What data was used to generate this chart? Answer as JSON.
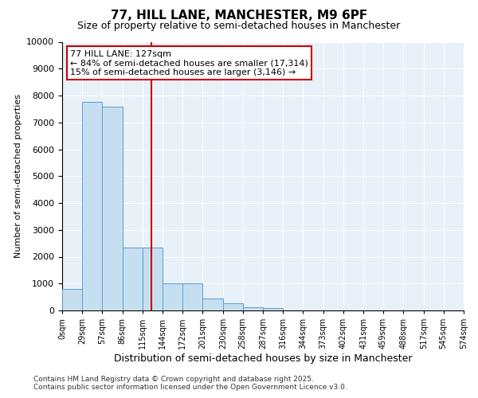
{
  "title": "77, HILL LANE, MANCHESTER, M9 6PF",
  "subtitle": "Size of property relative to semi-detached houses in Manchester",
  "xlabel": "Distribution of semi-detached houses by size in Manchester",
  "ylabel": "Number of semi-detached properties",
  "footnote1": "Contains HM Land Registry data © Crown copyright and database right 2025.",
  "footnote2": "Contains public sector information licensed under the Open Government Licence v3.0.",
  "property_label": "77 HILL LANE: 127sqm",
  "annotation_line1": "← 84% of semi-detached houses are smaller (17,314)",
  "annotation_line2": "15% of semi-detached houses are larger (3,146) →",
  "property_size": 127,
  "bin_edges": [
    0,
    29,
    57,
    86,
    115,
    144,
    172,
    201,
    230,
    258,
    287,
    316,
    344,
    373,
    402,
    431,
    459,
    488,
    517,
    545,
    574
  ],
  "bin_values": [
    800,
    7750,
    7600,
    2350,
    2350,
    1000,
    1000,
    450,
    280,
    130,
    100,
    0,
    0,
    0,
    0,
    0,
    0,
    0,
    0,
    0
  ],
  "bar_color": "#c5dff0",
  "bar_edge_color": "#5b9bd5",
  "vline_color": "#cc0000",
  "vline_x": 127,
  "annotation_box_color": "#cc0000",
  "background_color": "#e8f0f8",
  "ylim": [
    0,
    10000
  ],
  "yticks": [
    0,
    1000,
    2000,
    3000,
    4000,
    5000,
    6000,
    7000,
    8000,
    9000,
    10000
  ],
  "xlim": [
    0,
    574
  ]
}
